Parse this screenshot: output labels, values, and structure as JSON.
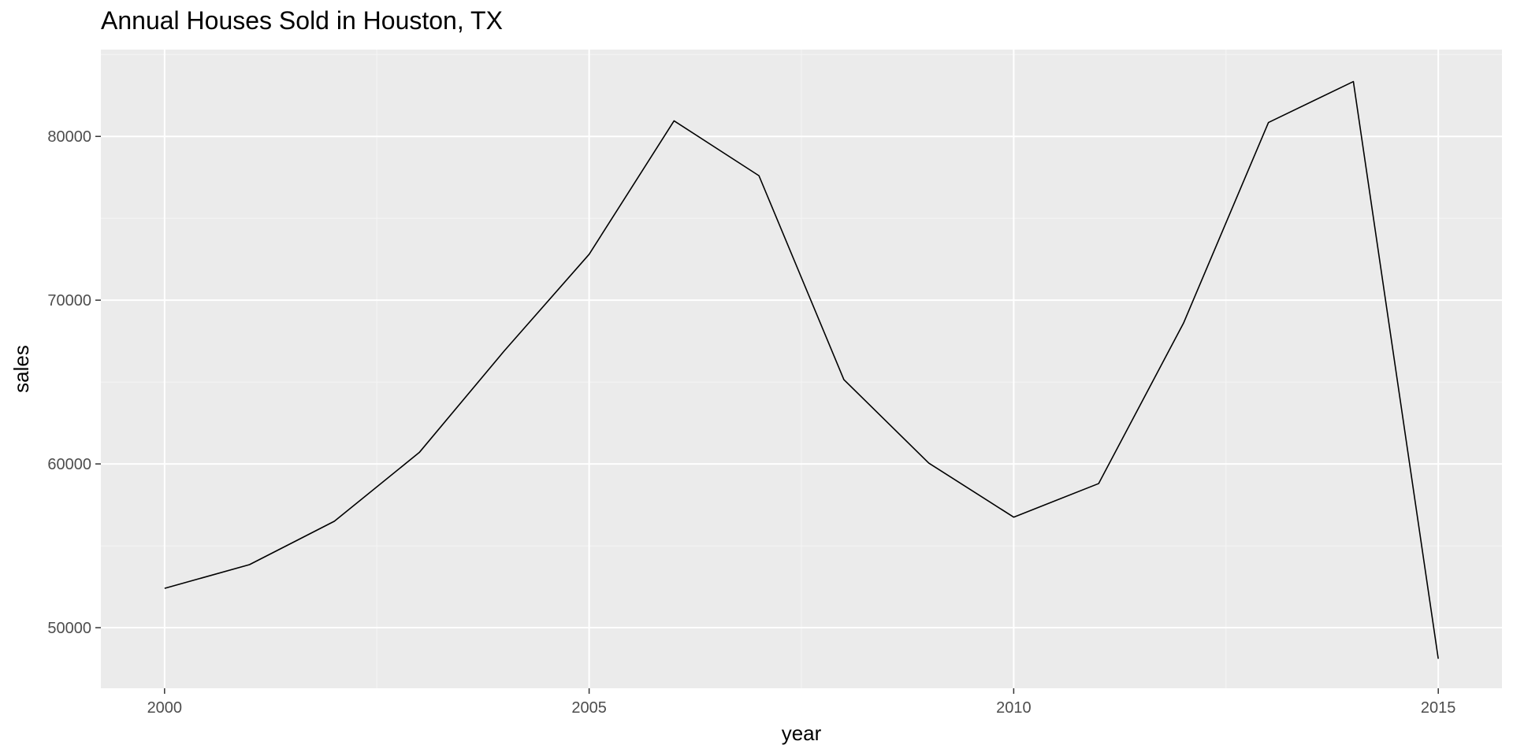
{
  "chart_data": {
    "type": "line",
    "title": "Annual Houses Sold in Houston, TX",
    "xlabel": "year",
    "ylabel": "sales",
    "x": [
      2000,
      2001,
      2002,
      2003,
      2004,
      2005,
      2006,
      2007,
      2008,
      2009,
      2010,
      2011,
      2012,
      2013,
      2014,
      2015
    ],
    "series": [
      {
        "values": [
          52400,
          53850,
          56500,
          60700,
          66900,
          72800,
          80950,
          77600,
          65150,
          60050,
          56750,
          58800,
          68600,
          80850,
          83350,
          48100
        ]
      }
    ],
    "xlim": [
      1999.25,
      2015.75
    ],
    "ylim": [
      46300,
      85300
    ],
    "x_ticks": [
      2000,
      2005,
      2010,
      2015
    ],
    "x_tick_labels": [
      "2000",
      "2005",
      "2010",
      "2015"
    ],
    "y_ticks": [
      50000,
      60000,
      70000,
      80000
    ],
    "y_tick_labels": [
      "50000",
      "60000",
      "70000",
      "80000"
    ],
    "grid": true,
    "legend": "none",
    "colors": {
      "panel_background": "#ebebeb",
      "grid_major": "#ffffff",
      "grid_minor": "#f5f5f5",
      "line": "#000000",
      "tick_text": "#4d4d4d",
      "tick_mark": "#333333"
    }
  }
}
